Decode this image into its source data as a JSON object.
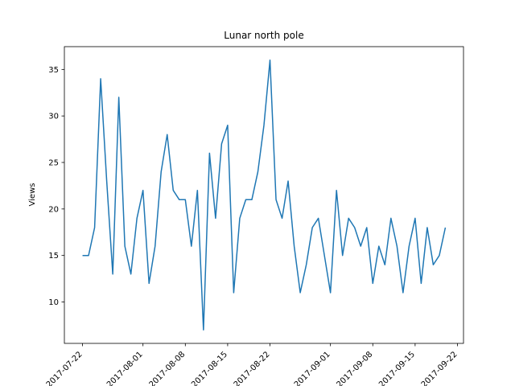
{
  "chart_data": {
    "type": "line",
    "title": "Lunar north pole",
    "xlabel": "",
    "ylabel": "Views",
    "x_start": "2017-07-22",
    "x": [
      "2017-07-22",
      "2017-07-23",
      "2017-07-24",
      "2017-07-25",
      "2017-07-26",
      "2017-07-27",
      "2017-07-28",
      "2017-07-29",
      "2017-07-30",
      "2017-07-31",
      "2017-08-01",
      "2017-08-02",
      "2017-08-03",
      "2017-08-04",
      "2017-08-05",
      "2017-08-06",
      "2017-08-07",
      "2017-08-08",
      "2017-08-09",
      "2017-08-10",
      "2017-08-11",
      "2017-08-12",
      "2017-08-13",
      "2017-08-14",
      "2017-08-15",
      "2017-08-16",
      "2017-08-17",
      "2017-08-18",
      "2017-08-19",
      "2017-08-20",
      "2017-08-21",
      "2017-08-22",
      "2017-08-23",
      "2017-08-24",
      "2017-08-25",
      "2017-08-26",
      "2017-08-27",
      "2017-08-28",
      "2017-08-29",
      "2017-08-30",
      "2017-08-31",
      "2017-09-01",
      "2017-09-02",
      "2017-09-03",
      "2017-09-04",
      "2017-09-05",
      "2017-09-06",
      "2017-09-07",
      "2017-09-08",
      "2017-09-09",
      "2017-09-10",
      "2017-09-11",
      "2017-09-12",
      "2017-09-13",
      "2017-09-14",
      "2017-09-15",
      "2017-09-16",
      "2017-09-17",
      "2017-09-18",
      "2017-09-19",
      "2017-09-20"
    ],
    "series": [
      {
        "values": [
          15,
          15,
          18,
          34,
          23,
          13,
          32,
          16,
          13,
          19,
          22,
          12,
          16,
          24,
          28,
          22,
          21,
          21,
          16,
          22,
          7,
          26,
          19,
          27,
          29,
          11,
          19,
          21,
          21,
          24,
          29,
          36,
          21,
          19,
          23,
          16,
          11,
          14,
          18,
          19,
          15,
          11,
          22,
          15,
          19,
          18,
          16,
          18,
          12,
          16,
          14,
          19,
          16,
          11,
          16,
          19,
          12,
          18,
          14,
          15,
          18
        ],
        "color": "#1f77b4"
      }
    ],
    "xticks": [
      "2017-07-22",
      "2017-08-01",
      "2017-08-08",
      "2017-08-15",
      "2017-08-22",
      "2017-09-01",
      "2017-09-08",
      "2017-09-15",
      "2017-09-22"
    ],
    "yticks": [
      10,
      15,
      20,
      25,
      30,
      35
    ],
    "xlim": [
      "2017-07-19",
      "2017-09-23"
    ],
    "ylim": [
      5.55,
      37.45
    ],
    "grid": false,
    "legend": "none"
  }
}
